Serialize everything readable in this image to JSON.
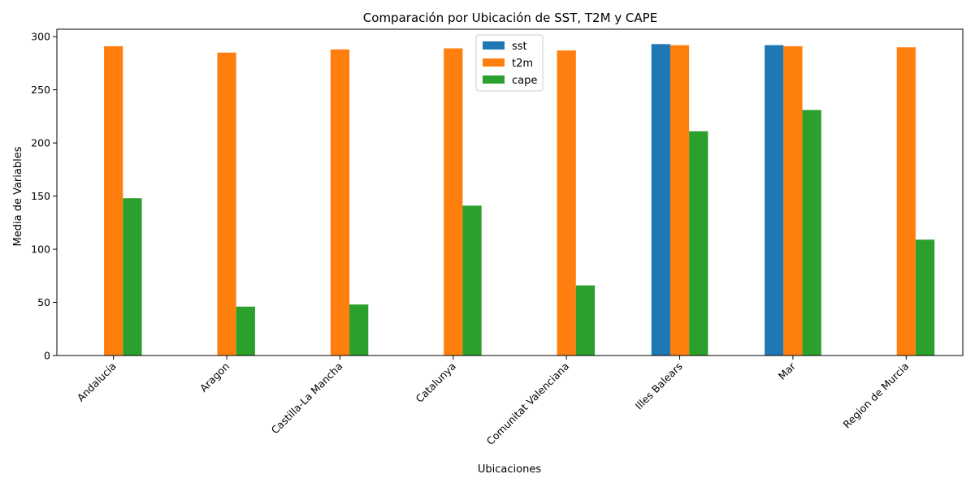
{
  "chart_data": {
    "type": "bar",
    "title": "Comparación por Ubicación de SST, T2M y CAPE",
    "xlabel": "Ubicaciones",
    "ylabel": "Media de Variables",
    "ylim": [
      0,
      307
    ],
    "yticks": [
      0,
      50,
      100,
      150,
      200,
      250,
      300
    ],
    "categories": [
      "Andalucía",
      "Aragon",
      "Castilla-La Mancha",
      "Catalunya",
      "Comunitat Valenciana",
      "Illes Balears",
      "Mar",
      "Region de Murcia"
    ],
    "series": [
      {
        "name": "sst",
        "color": "#1f77b4",
        "values": [
          null,
          null,
          null,
          null,
          null,
          293,
          292,
          null
        ]
      },
      {
        "name": "t2m",
        "color": "#ff7f0e",
        "values": [
          291,
          285,
          288,
          289,
          287,
          292,
          291,
          290
        ]
      },
      {
        "name": "cape",
        "color": "#2ca02c",
        "values": [
          148,
          46,
          48,
          141,
          66,
          211,
          231,
          109
        ]
      }
    ],
    "grid": false,
    "legend_position": "top-center",
    "xtick_rotation": 45
  }
}
